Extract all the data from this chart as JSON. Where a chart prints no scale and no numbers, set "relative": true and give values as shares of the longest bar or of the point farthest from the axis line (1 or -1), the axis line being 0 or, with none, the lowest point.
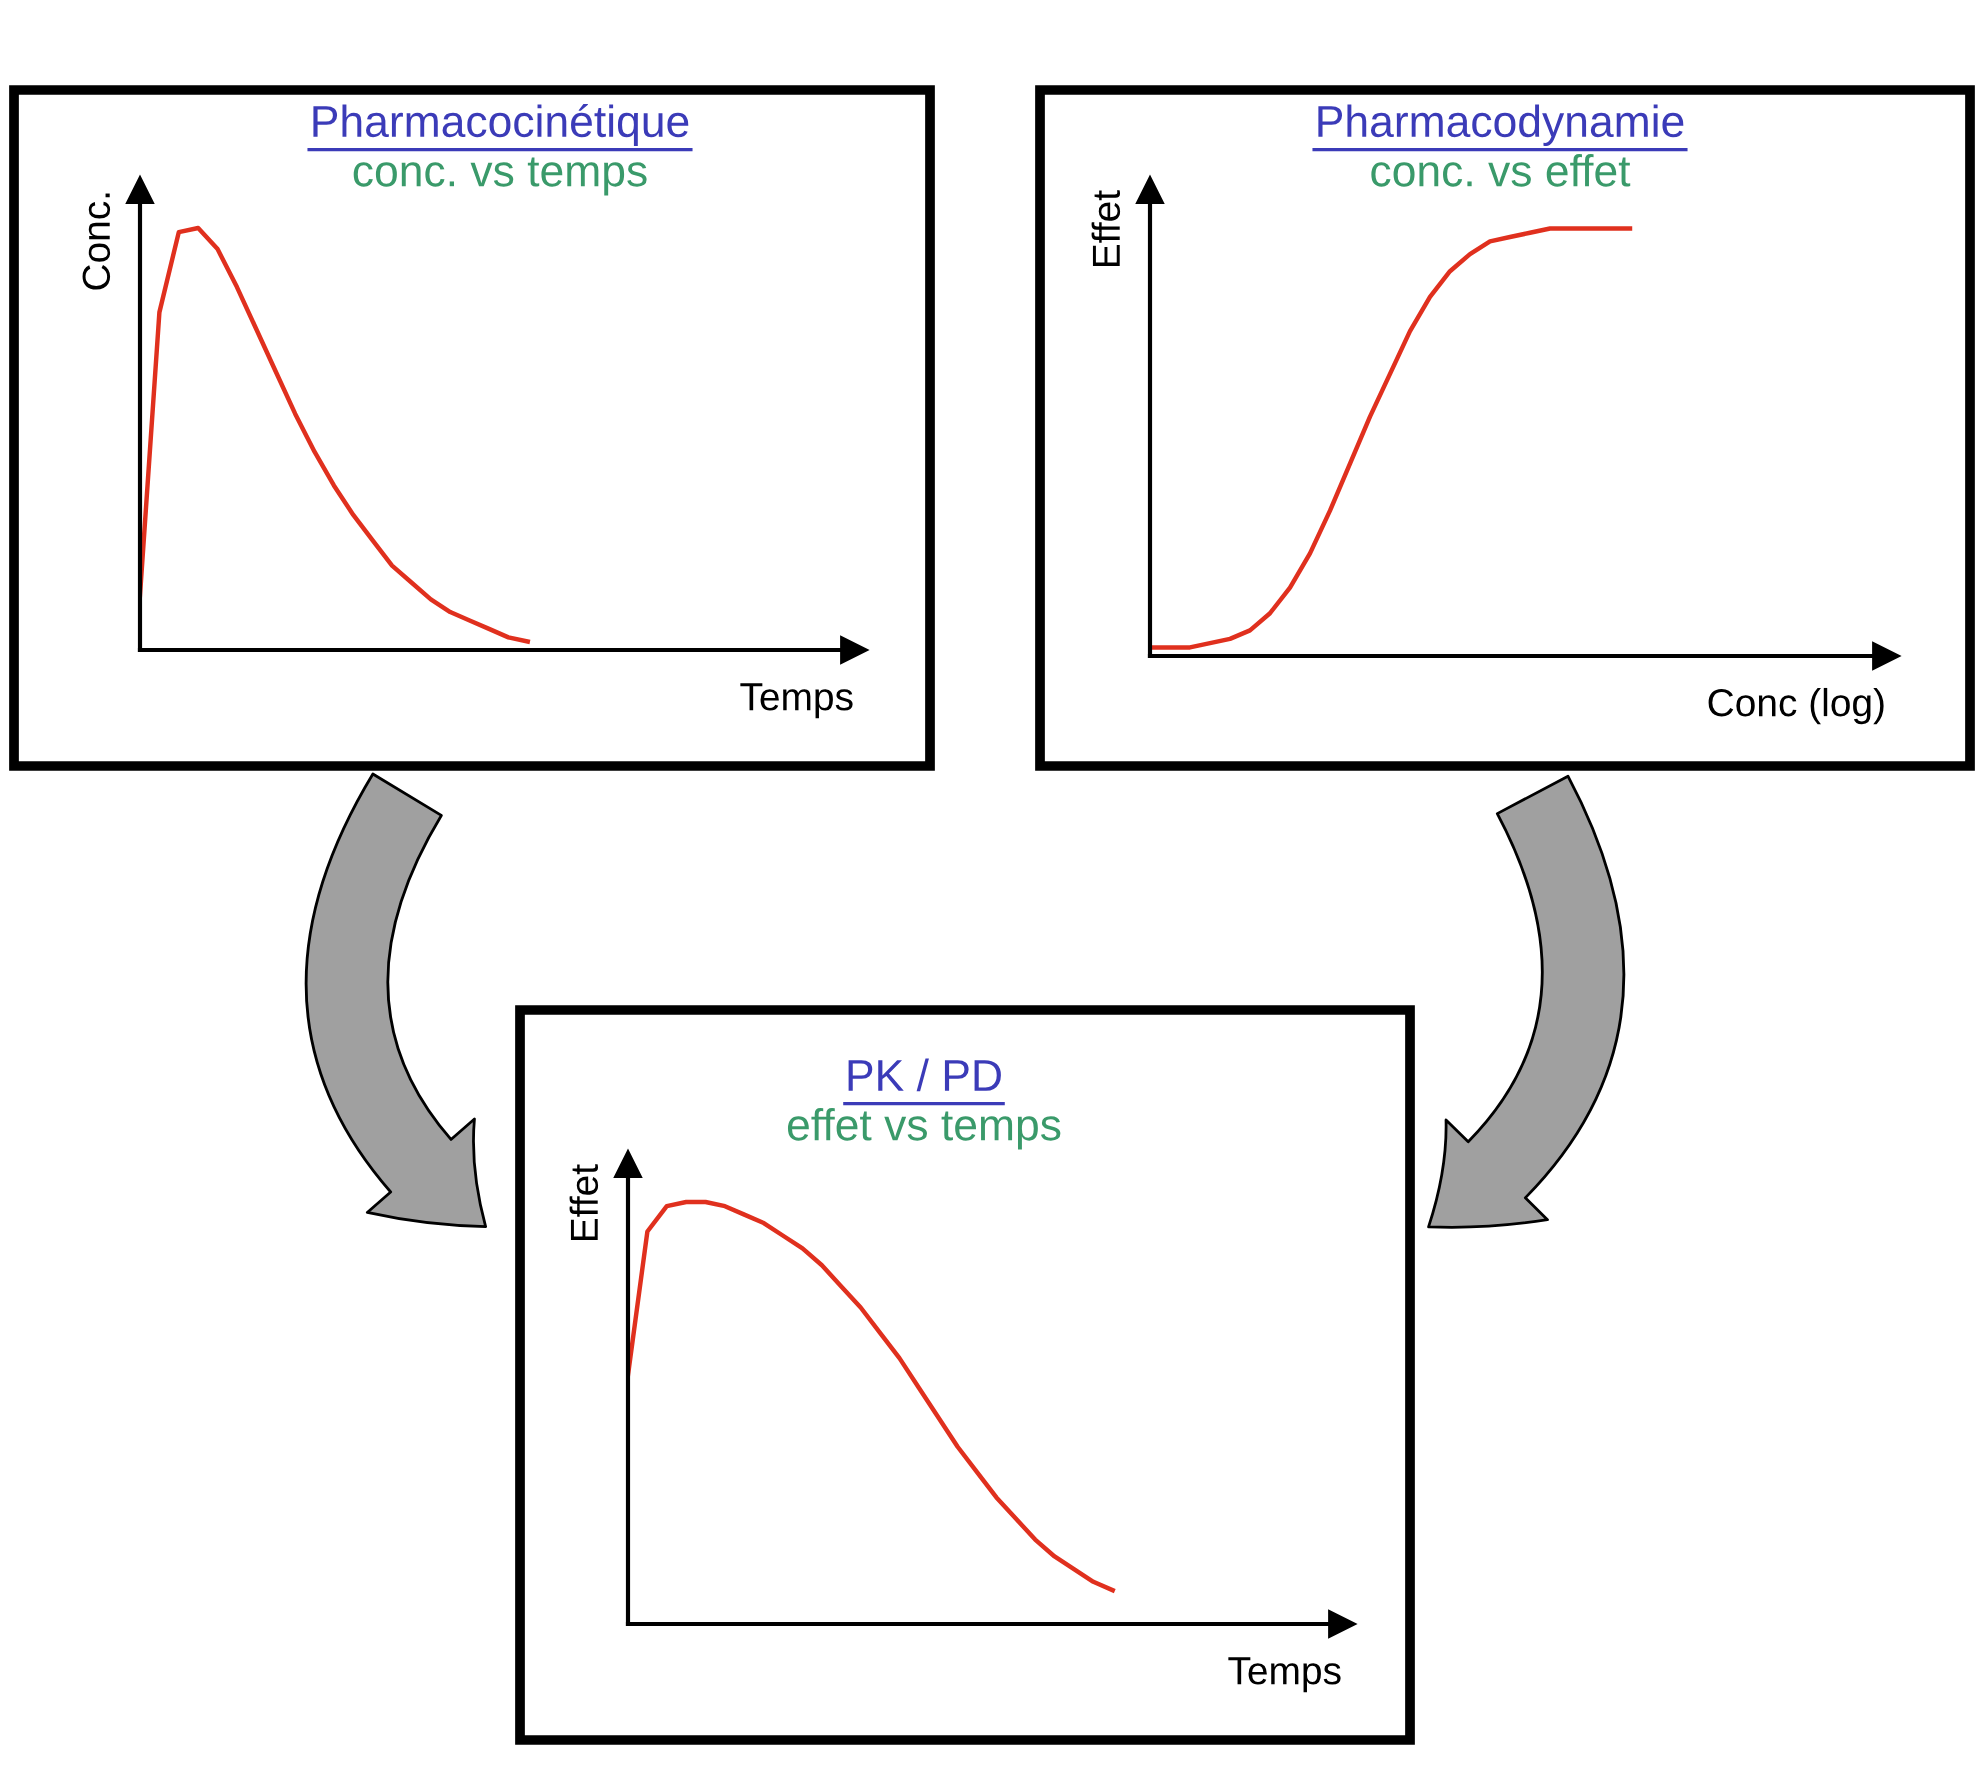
{
  "chart_data": [
    {
      "type": "line",
      "title": "Pharmacocinétique",
      "subtitle": "conc. vs temps",
      "xlabel": "Temps",
      "ylabel": "Conc.",
      "relative": true,
      "tick_labels": false,
      "grid": false,
      "categories": [
        null,
        null,
        null,
        null,
        null,
        null,
        null,
        null,
        null,
        null,
        null,
        null,
        null,
        null,
        null,
        null,
        null,
        null,
        null,
        null,
        null,
        null,
        null,
        null,
        null,
        null,
        null,
        null,
        null,
        null,
        null,
        null,
        null,
        null,
        null,
        null,
        null
      ],
      "series": [
        {
          "color": "#e0301e",
          "values": [
            0.13,
            0.8,
            0.99,
            1.0,
            0.95,
            0.86,
            0.76,
            0.66,
            0.56,
            0.47,
            0.39,
            0.32,
            0.26,
            0.2,
            0.16,
            0.12,
            0.09,
            0.07,
            0.05,
            0.03,
            0.02,
            null,
            null,
            null,
            null,
            null,
            null,
            null,
            null,
            null,
            null,
            null,
            null,
            null,
            null,
            null,
            null
          ]
        }
      ]
    },
    {
      "type": "line",
      "title": "Pharmacodynamie",
      "subtitle": "conc. vs effet",
      "xlabel": "Conc (log)",
      "ylabel": "Effet",
      "relative": true,
      "tick_labels": false,
      "grid": false,
      "categories": [
        null,
        null,
        null,
        null,
        null,
        null,
        null,
        null,
        null,
        null,
        null,
        null,
        null,
        null,
        null,
        null,
        null,
        null,
        null,
        null,
        null,
        null,
        null,
        null,
        null,
        null,
        null,
        null,
        null,
        null,
        null,
        null,
        null,
        null,
        null,
        null,
        null
      ],
      "series": [
        {
          "color": "#e0301e",
          "values": [
            0.02,
            0.02,
            0.02,
            0.03,
            0.04,
            0.06,
            0.1,
            0.16,
            0.24,
            0.34,
            0.45,
            0.56,
            0.66,
            0.76,
            0.84,
            0.9,
            0.94,
            0.97,
            0.98,
            0.99,
            1.0,
            1.0,
            1.0,
            1.0,
            1.0,
            null,
            null,
            null,
            null,
            null,
            null,
            null,
            null,
            null,
            null,
            null,
            null
          ]
        }
      ]
    },
    {
      "type": "line",
      "title": "PK / PD",
      "subtitle": "effet vs temps",
      "xlabel": "Temps",
      "ylabel": "Effet",
      "relative": true,
      "tick_labels": false,
      "grid": false,
      "categories": [
        null,
        null,
        null,
        null,
        null,
        null,
        null,
        null,
        null,
        null,
        null,
        null,
        null,
        null,
        null,
        null,
        null,
        null,
        null,
        null,
        null,
        null,
        null,
        null,
        null,
        null,
        null,
        null,
        null,
        null,
        null,
        null,
        null,
        null,
        null,
        null,
        null
      ],
      "series": [
        {
          "color": "#e0301e",
          "values": [
            0.59,
            0.93,
            0.99,
            1.0,
            1.0,
            0.99,
            0.97,
            0.95,
            0.92,
            0.89,
            0.85,
            0.8,
            0.75,
            0.69,
            0.63,
            0.56,
            0.49,
            0.42,
            0.36,
            0.3,
            0.25,
            0.2,
            0.16,
            0.13,
            0.1,
            0.08,
            null,
            null,
            null,
            null,
            null,
            null,
            null,
            null,
            null,
            null,
            null
          ]
        }
      ]
    }
  ]
}
